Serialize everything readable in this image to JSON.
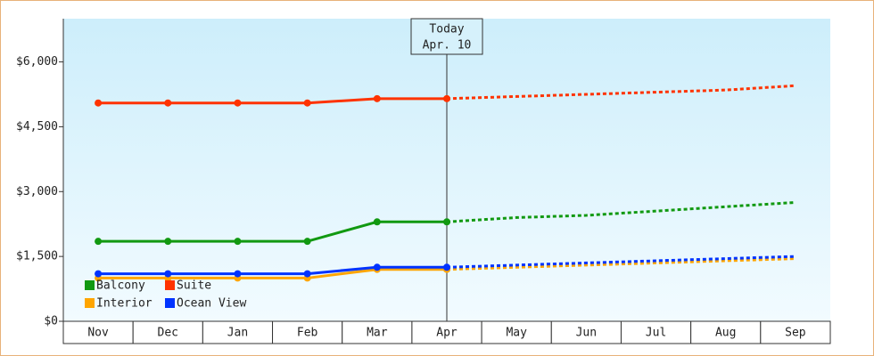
{
  "chart_data": {
    "type": "line",
    "categories": [
      "Nov",
      "Dec",
      "Jan",
      "Feb",
      "Mar",
      "Apr",
      "May",
      "Jun",
      "Jul",
      "Aug",
      "Sep"
    ],
    "projected_from": "Apr",
    "annotation": {
      "title": "Today",
      "date": "Apr. 10",
      "category": "Apr"
    },
    "ylim": [
      0,
      7000
    ],
    "yticks": [
      {
        "value": 0,
        "label": "$0"
      },
      {
        "value": 1500,
        "label": "$1,500"
      },
      {
        "value": 3000,
        "label": "$3,000"
      },
      {
        "value": 4500,
        "label": "$4,500"
      },
      {
        "value": 6000,
        "label": "$6,000"
      }
    ],
    "legend": "bottom-left",
    "series": [
      {
        "name": "Balcony",
        "color": "#119911",
        "values": [
          1850,
          1850,
          1850,
          1850,
          2300,
          2300,
          2400,
          2450,
          2550,
          2650,
          2750
        ]
      },
      {
        "name": "Suite",
        "color": "#ff3300",
        "values": [
          5050,
          5050,
          5050,
          5050,
          5150,
          5150,
          5200,
          5250,
          5300,
          5350,
          5450
        ]
      },
      {
        "name": "Interior",
        "color": "#ffa500",
        "values": [
          1000,
          1000,
          1000,
          1000,
          1200,
          1200,
          1250,
          1300,
          1350,
          1400,
          1450
        ]
      },
      {
        "name": "Ocean View",
        "color": "#0033ff",
        "values": [
          1100,
          1100,
          1100,
          1100,
          1250,
          1250,
          1300,
          1350,
          1400,
          1450,
          1500
        ]
      }
    ]
  }
}
